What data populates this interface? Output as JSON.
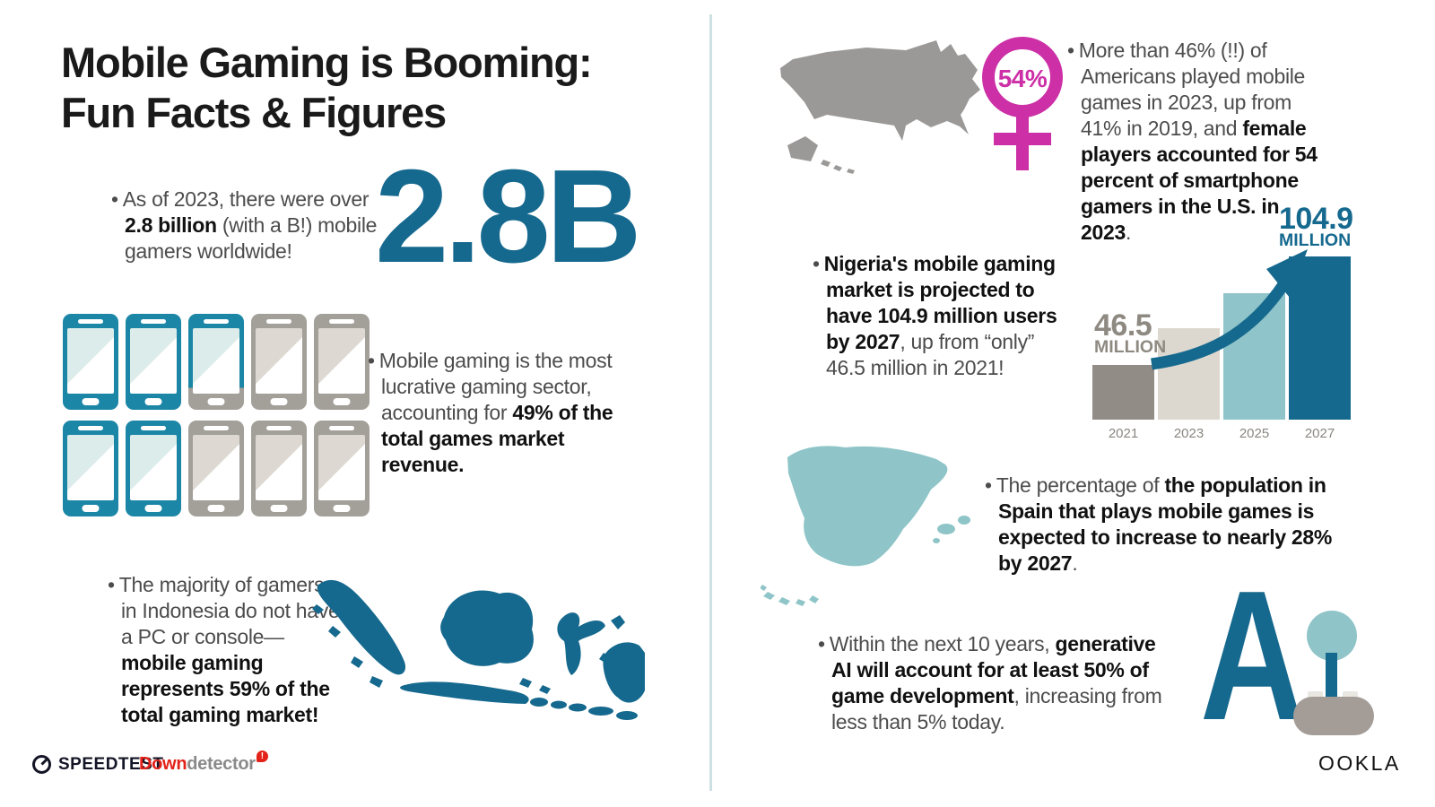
{
  "title": {
    "line1": "Mobile Gaming is Booming:",
    "line2": "Fun Facts & Figures"
  },
  "ui": {
    "bullet": "•"
  },
  "big_stat": "2.8B",
  "facts": {
    "gamers": {
      "segments": [
        {
          "text": "As of 2023, there were over ",
          "bold": false
        },
        {
          "text": "2.8 billion",
          "bold": true
        },
        {
          "text": " (with a B!) mobile gamers worldwide!",
          "bold": false
        }
      ]
    },
    "revenue": {
      "segments": [
        {
          "text": "Mobile gaming is the most lucrative gaming sector, accounting for ",
          "bold": false
        },
        {
          "text": "49% of the total games market revenue.",
          "bold": true
        }
      ]
    },
    "indonesia": {
      "segments": [
        {
          "text": "The majority of gamers in Indonesia do not have a PC or console—",
          "bold": false
        },
        {
          "text": "mobile gaming represents 59% of the total gaming market!",
          "bold": true
        }
      ]
    },
    "usa": {
      "segments": [
        {
          "text": "More than 46% (!!) of Americans played mobile games in 2023, up from 41% in 2019, and ",
          "bold": false
        },
        {
          "text": "female players accounted for 54 percent of smartphone gamers in the U.S. in 2023",
          "bold": true
        },
        {
          "text": ".",
          "bold": false
        }
      ]
    },
    "nigeria": {
      "segments": [
        {
          "text": "Nigeria's mobile gaming market is projected to have 104.9 million users by 2027",
          "bold": true
        },
        {
          "text": ", up from “only” 46.5 million in 2021!",
          "bold": false
        }
      ]
    },
    "spain": {
      "segments": [
        {
          "text": "The percentage of ",
          "bold": false
        },
        {
          "text": "the population in Spain that plays mobile games is expected to increase to nearly 28% by 2027",
          "bold": true
        },
        {
          "text": ".",
          "bold": false
        }
      ]
    },
    "ai": {
      "segments": [
        {
          "text": "Within the next 10 years, ",
          "bold": false
        },
        {
          "text": "generative AI will account for at least 50% of game development",
          "bold": true
        },
        {
          "text": ", increasing from less than 5% today.",
          "bold": false
        }
      ]
    }
  },
  "phones": {
    "grid": [
      [
        "teal",
        "teal",
        "partial",
        "gray",
        "gray"
      ],
      [
        "teal",
        "teal",
        "gray",
        "gray",
        "gray"
      ]
    ],
    "depicts": "49% of phones shaded teal"
  },
  "female_badge": "54%",
  "chart_data": {
    "type": "bar",
    "categories": [
      "2021",
      "2023",
      "2025",
      "2027"
    ],
    "values": [
      46.5,
      60,
      78,
      104.9
    ],
    "values_note": "2023 and 2025 bars are unlabeled; values estimated from bar heights",
    "unit": "million users",
    "labeled_points": [
      {
        "category": "2021",
        "value": 46.5,
        "label_line1": "46.5",
        "label_line2": "MILLION"
      },
      {
        "category": "2027",
        "value": 104.9,
        "label_line1": "104.9",
        "label_line2": "MILLION"
      }
    ],
    "bar_colors": [
      "#918d86",
      "#dcd8cf",
      "#8fc5ca",
      "#16698e"
    ],
    "annotations": [
      "curved growth arrow from 2021 label to 2027 bar"
    ],
    "xlabel": "",
    "ylabel": "",
    "legend": "none",
    "grid": false
  },
  "ai_graphic": {
    "letter": "A"
  },
  "logos": {
    "speedtest": "SPEEDTEST",
    "downdetector_red": "Down",
    "downdetector_gray": "detector",
    "downdetector_badge": "!",
    "ookla": "OOKLA"
  },
  "colors": {
    "primary_teal": "#16698e",
    "phone_teal": "#1b86a6",
    "light_teal": "#8fc5c8",
    "bar_beige": "#dcd8cf",
    "bar_gray": "#918d86",
    "map_gray": "#9b9998",
    "pink": "#cc2fa6",
    "speedtest_navy": "#141526",
    "downdetector_red": "#e32219",
    "divider": "#cde0e2"
  }
}
